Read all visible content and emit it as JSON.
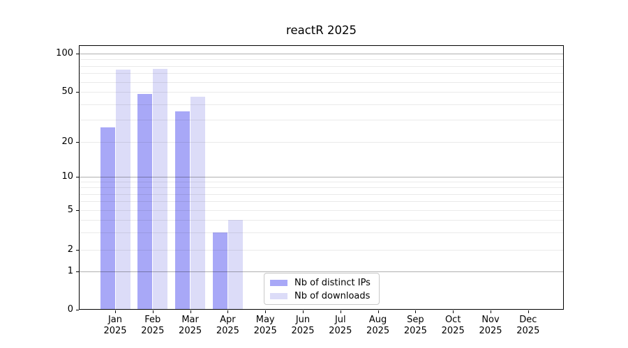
{
  "chart_data": {
    "type": "bar",
    "title": "reactR 2025",
    "year_label": "2025",
    "categories": [
      "Jan",
      "Feb",
      "Mar",
      "Apr",
      "May",
      "Jun",
      "Jul",
      "Aug",
      "Sep",
      "Oct",
      "Nov",
      "Dec"
    ],
    "series": [
      {
        "name": "Nb of distinct IPs",
        "color_key": "ips",
        "values": [
          26,
          48,
          35,
          3,
          null,
          null,
          null,
          null,
          null,
          null,
          null,
          null
        ]
      },
      {
        "name": "Nb of downloads",
        "color_key": "downloads",
        "values": [
          75,
          76,
          46,
          4,
          null,
          null,
          null,
          null,
          null,
          null,
          null,
          null
        ]
      }
    ],
    "yscale": "log-like",
    "ytick_labels": [
      0,
      1,
      2,
      5,
      10,
      20,
      50,
      100
    ],
    "grid": {
      "major": [
        1,
        10,
        100
      ],
      "minor": [
        2,
        3,
        4,
        5,
        6,
        7,
        8,
        9,
        20,
        30,
        40,
        50,
        60,
        70,
        80,
        90
      ]
    },
    "legend_position": "lower center, inside plot"
  },
  "colors": {
    "ips": "#a8a8f7",
    "downloads": "#dcdcf8",
    "grid_major": "#b0b0b0",
    "grid_minor": "#eaeaea",
    "axis": "#000000",
    "legend_border": "#c9c9c9",
    "background": "#ffffff",
    "text": "#000000"
  }
}
